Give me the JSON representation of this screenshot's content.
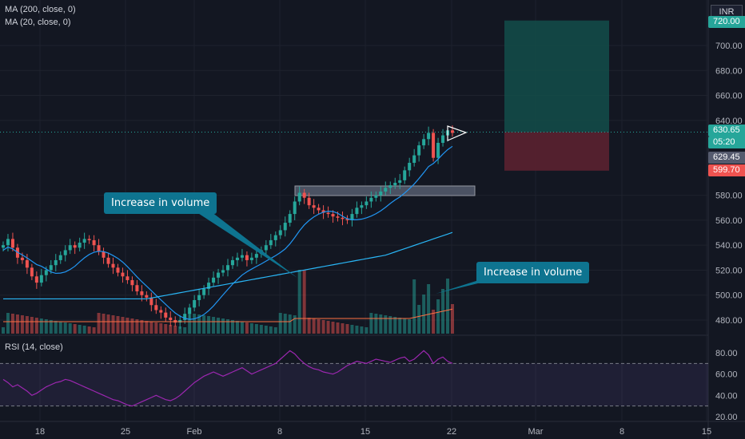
{
  "legends": {
    "ma200": "MA (200, close, 0)",
    "ma20": "MA (20, close, 0)",
    "rsi": "RSI (14, close)"
  },
  "currency": "INR",
  "price_tags": {
    "current": "630.65",
    "countdown": "05:20",
    "ma_value": "629.45",
    "stop": "599.70",
    "target": "720.00"
  },
  "callouts": {
    "left": "Increase in volume",
    "right": "Increase in volume"
  },
  "colors": {
    "up": "#26a69a",
    "down": "#ef5350",
    "ma20": "#2196f3",
    "ma200": "#29b6f6",
    "vol_ma": "#ff7043",
    "rsi": "#9c27b0",
    "callout": "#0e7490",
    "target_zone": "#134e4a",
    "stop_zone": "#5b2130"
  },
  "chart_data": [
    {
      "type": "candlestick",
      "y_ticks": [
        "700.00",
        "680.00",
        "660.00",
        "640.00",
        "580.00",
        "560.00",
        "540.00",
        "520.00",
        "500.00",
        "480.00"
      ],
      "ylim": [
        470,
        725
      ],
      "x_ticks": [
        "18",
        "25",
        "Feb",
        "8",
        "15",
        "22",
        "Mar",
        "8",
        "15"
      ],
      "closes": [
        540,
        545,
        538,
        530,
        528,
        522,
        515,
        510,
        516,
        520,
        524,
        528,
        532,
        536,
        540,
        538,
        542,
        545,
        544,
        540,
        535,
        530,
        525,
        522,
        518,
        515,
        512,
        508,
        503,
        500,
        498,
        492,
        488,
        486,
        482,
        480,
        478,
        480,
        485,
        490,
        496,
        500,
        505,
        510,
        514,
        518,
        520,
        524,
        528,
        530,
        532,
        528,
        530,
        533,
        536,
        540,
        544,
        548,
        552,
        558,
        565,
        575,
        582,
        578,
        572,
        570,
        568,
        566,
        565,
        563,
        562,
        561,
        560,
        565,
        570,
        572,
        575,
        578,
        580,
        583,
        586,
        588,
        590,
        592,
        600,
        606,
        612,
        620,
        625,
        630,
        610,
        622,
        628,
        632,
        630
      ],
      "series_lines": [
        "MA 20",
        "MA 200",
        "Volume MA"
      ]
    },
    {
      "type": "line",
      "name": "RSI (14, close)",
      "y_ticks": [
        "80.00",
        "60.00",
        "40.00",
        "20.00"
      ],
      "ylim": [
        20,
        90
      ],
      "bands": [
        30,
        70
      ],
      "values": [
        55,
        52,
        48,
        50,
        47,
        44,
        40,
        42,
        45,
        48,
        50,
        52,
        53,
        55,
        54,
        52,
        50,
        48,
        46,
        44,
        42,
        40,
        38,
        36,
        35,
        33,
        31,
        30,
        32,
        34,
        36,
        38,
        40,
        38,
        36,
        35,
        37,
        40,
        44,
        48,
        52,
        55,
        58,
        60,
        62,
        60,
        58,
        60,
        62,
        64,
        66,
        63,
        60,
        62,
        64,
        66,
        68,
        70,
        74,
        78,
        82,
        79,
        74,
        70,
        67,
        65,
        64,
        62,
        61,
        60,
        62,
        65,
        68,
        70,
        72,
        71,
        70,
        72,
        74,
        73,
        72,
        71,
        73,
        75,
        76,
        72,
        74,
        78,
        82,
        78,
        70,
        74,
        76,
        72,
        70
      ]
    }
  ]
}
